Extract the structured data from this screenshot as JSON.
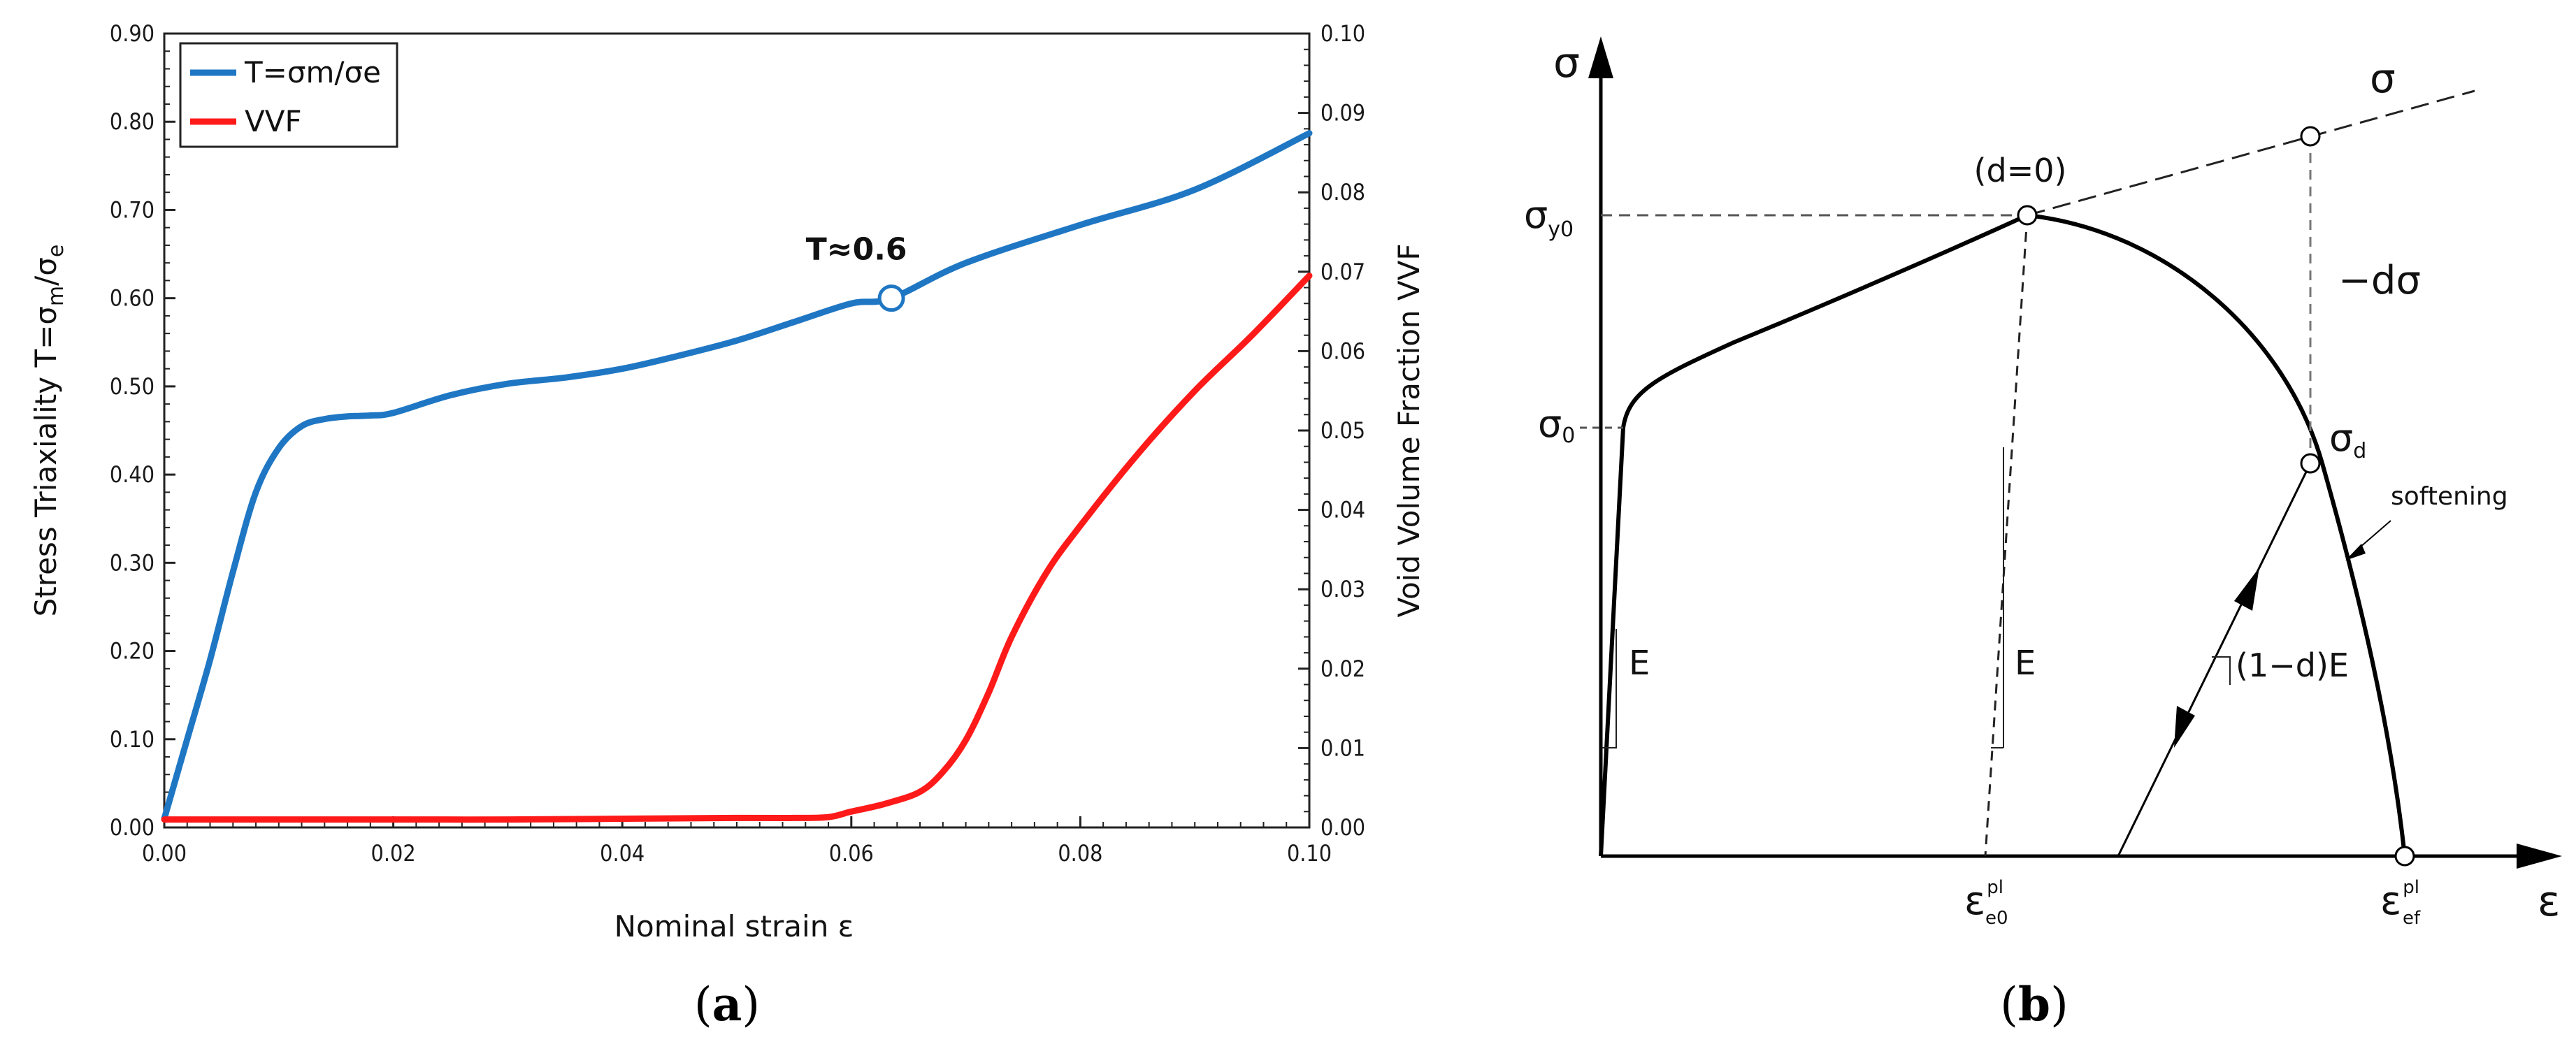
{
  "panel_a": {
    "label_open": "(",
    "label_letter": "a",
    "label_close": ")",
    "chart_data": {
      "type": "line",
      "xlabel": "Nominal strain ε",
      "ylabel_left_prefix": "Stress Triaxiality T=",
      "ylabel_left_sigma": "σ",
      "ylabel_left_m": "m",
      "ylabel_left_slash": "/",
      "ylabel_left_e": "e",
      "ylabel_right": "Void Volume Fraction VVF",
      "xlim": [
        0,
        0.1
      ],
      "ylim_left": [
        0,
        0.9
      ],
      "ylim_right": [
        0,
        0.1
      ],
      "x_ticks": [
        "0.00",
        "0.02",
        "0.04",
        "0.06",
        "0.08",
        "0.10"
      ],
      "y_left_ticks": [
        "0.00",
        "0.10",
        "0.20",
        "0.30",
        "0.40",
        "0.50",
        "0.60",
        "0.70",
        "0.80",
        "0.90"
      ],
      "y_right_ticks": [
        "0.00",
        "0.01",
        "0.02",
        "0.03",
        "0.04",
        "0.05",
        "0.06",
        "0.07",
        "0.08",
        "0.09",
        "0.10"
      ],
      "series": [
        {
          "name": "T",
          "legend": "T=σm/σe",
          "axis": "left",
          "color": "#1f77c4",
          "x": [
            0,
            0.002,
            0.004,
            0.006,
            0.008,
            0.01,
            0.012,
            0.014,
            0.016,
            0.018,
            0.02,
            0.025,
            0.03,
            0.035,
            0.04,
            0.045,
            0.05,
            0.055,
            0.06,
            0.0635,
            0.07,
            0.08,
            0.09,
            0.1
          ],
          "values": [
            0.01,
            0.1,
            0.19,
            0.29,
            0.38,
            0.43,
            0.455,
            0.463,
            0.466,
            0.467,
            0.47,
            0.49,
            0.503,
            0.51,
            0.52,
            0.535,
            0.552,
            0.573,
            0.594,
            0.6,
            0.64,
            0.683,
            0.723,
            0.787
          ]
        },
        {
          "name": "VVF",
          "legend": "VVF",
          "axis": "right",
          "color": "#ff1a1a",
          "x": [
            0,
            0.01,
            0.02,
            0.03,
            0.04,
            0.05,
            0.055,
            0.058,
            0.06,
            0.063,
            0.066,
            0.068,
            0.07,
            0.072,
            0.074,
            0.077,
            0.08,
            0.085,
            0.09,
            0.095,
            0.1
          ],
          "values": [
            0.001,
            0.001,
            0.001,
            0.001,
            0.0011,
            0.0012,
            0.0012,
            0.0013,
            0.002,
            0.003,
            0.0045,
            0.007,
            0.011,
            0.017,
            0.024,
            0.032,
            0.038,
            0.047,
            0.055,
            0.062,
            0.0695
          ]
        }
      ],
      "marker": {
        "x": 0.0635,
        "y": 0.6,
        "label": "T≈0.6"
      },
      "legend_position": "top-left"
    }
  },
  "panel_b": {
    "label_open": "(",
    "label_letter": "b",
    "label_close": ")",
    "labels": {
      "sigma_axis": "σ",
      "eps_axis": "ε",
      "sigma_dashed": "σ",
      "d0": "(d=0)",
      "sigma_y0_main": "σ",
      "sigma_y0_sub": "y0",
      "sigma_0_main": "σ",
      "sigma_0_sub": "0",
      "minus_dsigma": "−dσ",
      "sigma_d_main": "σ",
      "sigma_d_sub": "d",
      "softening": "softening",
      "E_left": "E",
      "E_mid": "E",
      "one_minus_d_E": "(1−d)E",
      "eps_e0_main": "ε",
      "eps_e0_sub": "e0",
      "eps_e0_sup": "pl",
      "eps_ef_main": "ε",
      "eps_ef_sub": "ef",
      "eps_ef_sup": "pl"
    }
  }
}
